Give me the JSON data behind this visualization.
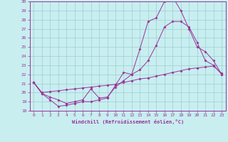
{
  "xlabel": "Windchill (Refroidissement éolien,°C)",
  "xlim": [
    -0.5,
    23.5
  ],
  "ylim": [
    18,
    30
  ],
  "yticks": [
    18,
    19,
    20,
    21,
    22,
    23,
    24,
    25,
    26,
    27,
    28,
    29,
    30
  ],
  "xticks": [
    0,
    1,
    2,
    3,
    4,
    5,
    6,
    7,
    8,
    9,
    10,
    11,
    12,
    13,
    14,
    15,
    16,
    17,
    18,
    19,
    20,
    21,
    22,
    23
  ],
  "bg_color": "#c8eef0",
  "grid_color": "#9ecece",
  "line_color": "#993399",
  "line1_y": [
    21.1,
    19.9,
    19.2,
    18.5,
    18.6,
    18.8,
    19.0,
    19.0,
    19.2,
    19.4,
    20.8,
    22.2,
    22.0,
    24.8,
    27.8,
    28.2,
    30.0,
    30.5,
    29.0,
    27.0,
    25.0,
    24.5,
    23.5,
    22.0
  ],
  "line2_y": [
    21.1,
    19.9,
    19.5,
    19.2,
    18.8,
    19.0,
    19.2,
    20.4,
    19.4,
    19.5,
    20.6,
    21.3,
    22.0,
    22.5,
    23.5,
    25.2,
    27.2,
    27.8,
    27.8,
    27.2,
    25.5,
    23.5,
    23.0,
    22.0
  ],
  "line3_y": [
    21.1,
    20.0,
    20.1,
    20.2,
    20.3,
    20.4,
    20.5,
    20.6,
    20.7,
    20.8,
    20.9,
    21.1,
    21.3,
    21.5,
    21.6,
    21.8,
    22.0,
    22.2,
    22.4,
    22.6,
    22.7,
    22.8,
    22.9,
    22.1
  ]
}
